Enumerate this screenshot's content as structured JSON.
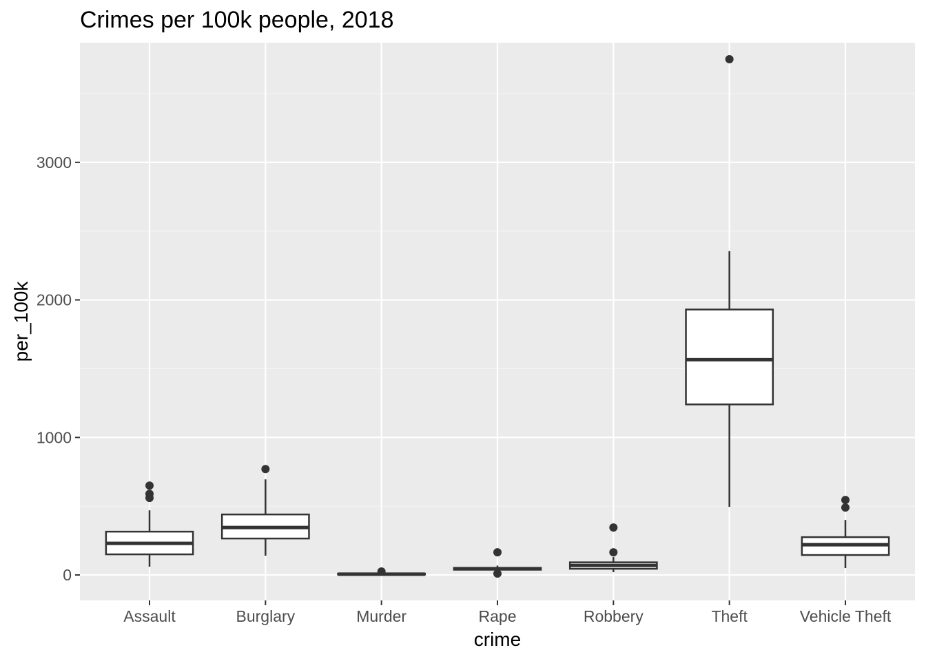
{
  "chart_data": {
    "type": "boxplot",
    "title": "Crimes per 100k people, 2018",
    "xlabel": "crime",
    "ylabel": "per_100k",
    "ylim": [
      -185,
      3870
    ],
    "yticks": [
      0,
      1000,
      2000,
      3000
    ],
    "yticks_minor": [
      500,
      1500,
      2500,
      3500
    ],
    "grid": true,
    "categories": [
      "Assault",
      "Burglary",
      "Murder",
      "Rape",
      "Robbery",
      "Theft",
      "Vehicle Theft"
    ],
    "boxes": [
      {
        "category": "Assault",
        "whisker_low": 60,
        "q1": 150,
        "median": 230,
        "q3": 315,
        "whisker_high": 470,
        "outliers": [
          560,
          590,
          650
        ]
      },
      {
        "category": "Burglary",
        "whisker_low": 140,
        "q1": 265,
        "median": 345,
        "q3": 440,
        "whisker_high": 695,
        "outliers": [
          770
        ]
      },
      {
        "category": "Murder",
        "whisker_low": 0,
        "q1": 3,
        "median": 6,
        "q3": 10,
        "whisker_high": 18,
        "outliers": [
          25
        ]
      },
      {
        "category": "Rape",
        "whisker_low": 30,
        "q1": 38,
        "median": 45,
        "q3": 52,
        "whisker_high": 68,
        "outliers": [
          10,
          165
        ]
      },
      {
        "category": "Robbery",
        "whisker_low": 20,
        "q1": 45,
        "median": 70,
        "q3": 92,
        "whisker_high": 130,
        "outliers": [
          165,
          345
        ]
      },
      {
        "category": "Theft",
        "whisker_low": 495,
        "q1": 1240,
        "median": 1565,
        "q3": 1930,
        "whisker_high": 2355,
        "outliers": [
          3750
        ]
      },
      {
        "category": "Vehicle Theft",
        "whisker_low": 50,
        "q1": 145,
        "median": 220,
        "q3": 275,
        "whisker_high": 400,
        "outliers": [
          490,
          545
        ]
      }
    ],
    "colors": {
      "panel_bg": "#ebebeb",
      "grid_major": "#ffffff",
      "grid_minor": "#f5f5f5",
      "box_fill": "#ffffff",
      "box_line": "#333333",
      "tick": "#333333"
    }
  }
}
